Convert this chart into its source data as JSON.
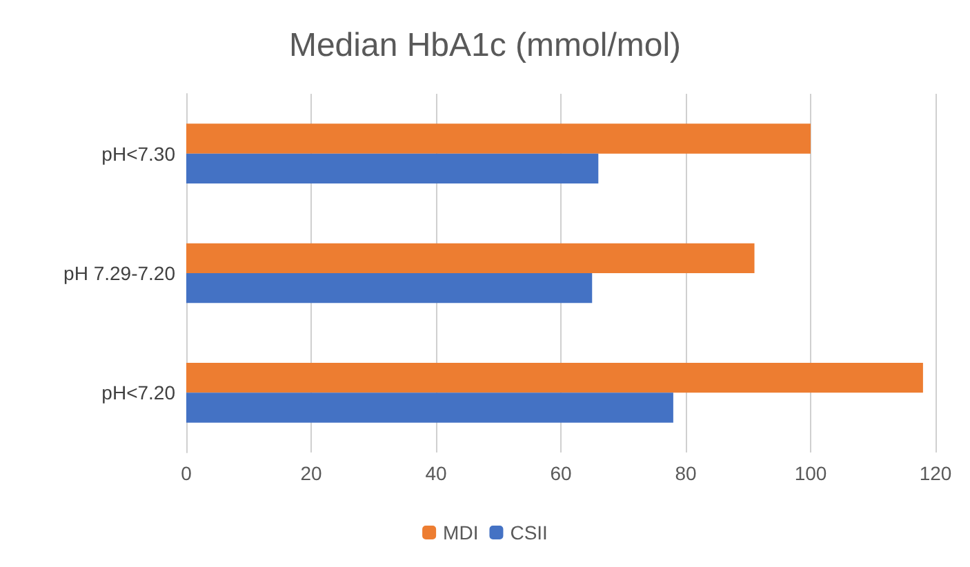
{
  "chart_data": {
    "type": "bar",
    "orientation": "horizontal",
    "title": "Median HbA1c (mmol/mol)",
    "categories": [
      "pH<7.30",
      "pH 7.29-7.20",
      "pH<7.20"
    ],
    "series": [
      {
        "name": "MDI",
        "color": "#ed7d31",
        "values": [
          100,
          91,
          118
        ]
      },
      {
        "name": "CSII",
        "color": "#4472c4",
        "values": [
          66,
          65,
          78
        ]
      }
    ],
    "xlim": [
      0,
      120
    ],
    "xticks": [
      0,
      20,
      40,
      60,
      80,
      100,
      120
    ],
    "grid": "x",
    "legend": "bottom"
  }
}
